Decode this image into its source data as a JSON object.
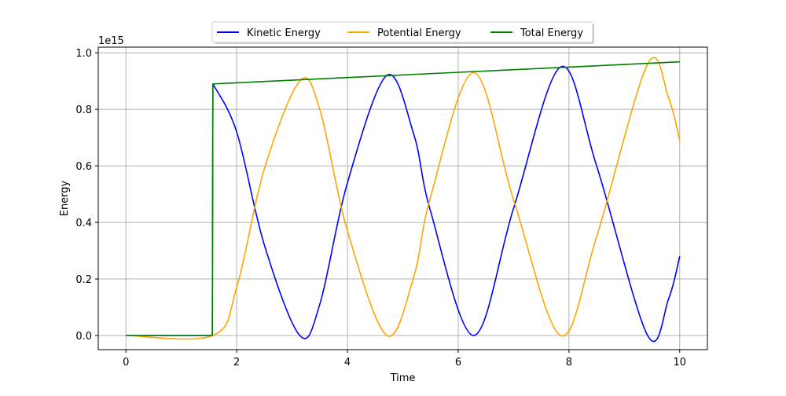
{
  "chart_data": {
    "type": "line",
    "title": "",
    "xlabel": "Time",
    "ylabel": "Energy",
    "offset_text": "1e15",
    "xlim": [
      -0.5,
      10.5
    ],
    "ylim": [
      -0.05,
      1.02
    ],
    "x_ticks": [
      0,
      2,
      4,
      6,
      8,
      10
    ],
    "x_tick_labels": [
      "0",
      "2",
      "4",
      "6",
      "8",
      "10"
    ],
    "y_ticks": [
      0.0,
      0.2,
      0.4,
      0.6,
      0.8,
      1.0
    ],
    "y_tick_labels": [
      "0.0",
      "0.2",
      "0.4",
      "0.6",
      "0.8",
      "1.0"
    ],
    "y_scale_multiplier": 1000000000000000.0,
    "grid": true,
    "legend_position": "top-center",
    "series": [
      {
        "name": "Kinetic Energy",
        "color": "#0000ff",
        "x": [
          0,
          1.55,
          1.56,
          1.57,
          2.0,
          2.5,
          3.14,
          3.5,
          4.0,
          4.71,
          5.2,
          5.5,
          6.28,
          7.0,
          7.85,
          8.5,
          9.42,
          9.8,
          10.0
        ],
        "y": [
          0.0,
          0.0,
          0.0,
          0.89,
          0.72,
          0.32,
          0.0,
          0.11,
          0.54,
          0.92,
          0.71,
          0.44,
          0.0,
          0.45,
          0.95,
          0.6,
          0.0,
          0.13,
          0.28
        ]
      },
      {
        "name": "Potential Energy",
        "color": "#ffa500",
        "x": [
          0,
          1.57,
          2.0,
          2.5,
          3.14,
          3.5,
          4.0,
          4.71,
          5.2,
          5.5,
          6.28,
          7.0,
          7.85,
          8.5,
          9.42,
          9.8,
          10.0
        ],
        "y": [
          0.0,
          0.0,
          0.17,
          0.59,
          0.9,
          0.8,
          0.37,
          0.0,
          0.21,
          0.49,
          0.93,
          0.48,
          0.0,
          0.35,
          0.96,
          0.84,
          0.69
        ]
      },
      {
        "name": "Total Energy",
        "color": "#008000",
        "x": [
          0,
          1.56,
          1.57,
          10.0
        ],
        "y": [
          0.0,
          0.0,
          0.89,
          0.968
        ]
      }
    ]
  }
}
